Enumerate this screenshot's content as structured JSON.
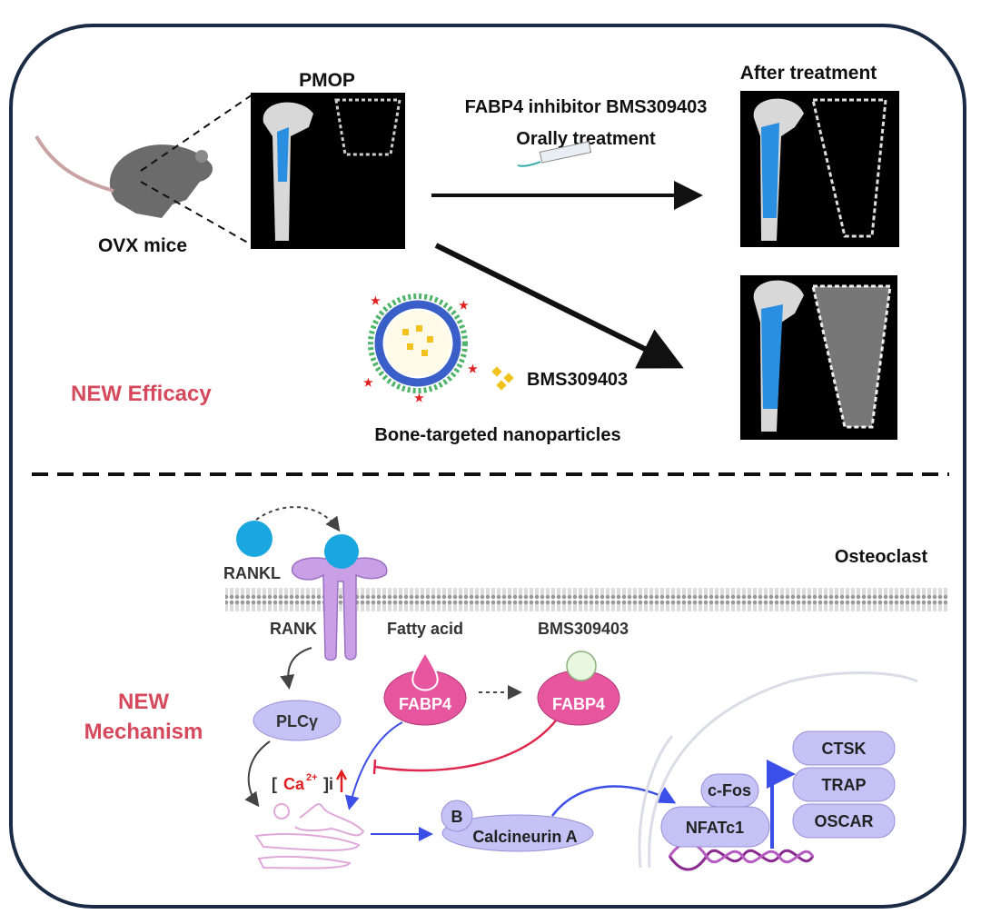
{
  "top": {
    "model_label": "OVX mice",
    "pmop_label": "PMOP",
    "treatment_line1": "FABP4 inhibitor BMS309403",
    "treatment_line2": "Orally treatment",
    "after_label": "After treatment",
    "drug_label": "BMS309403",
    "nanoparticle_label": "Bone-targeted nanoparticles",
    "section_label": "NEW Efficacy"
  },
  "bottom": {
    "section_label_line1": "NEW",
    "section_label_line2": "Mechanism",
    "cell_label": "Osteoclast",
    "rankl": "RANKL",
    "rank": "RANK",
    "fatty_acid": "Fatty acid",
    "inhibitor": "BMS309403",
    "fabp4": "FABP4",
    "plc": "PLCγ",
    "ca_open": "[",
    "ca_ion": "Ca",
    "ca_charge": "2+",
    "ca_close": "]i",
    "calcineurin_b": "B",
    "calcineurin_a": "Calcineurin A",
    "cfos": "c-Fos",
    "nfatc1": "NFATc1",
    "targets": [
      "CTSK",
      "TRAP",
      "OSCAR"
    ]
  },
  "colors": {
    "frame": "#1b2a45",
    "accent_red": "#d6485c",
    "receptor": "#c9a0e6",
    "fabp4": "#e8559f",
    "protein": "#c5c2f5",
    "activation": "#3c4ee8",
    "inhibition": "#e0284e"
  }
}
